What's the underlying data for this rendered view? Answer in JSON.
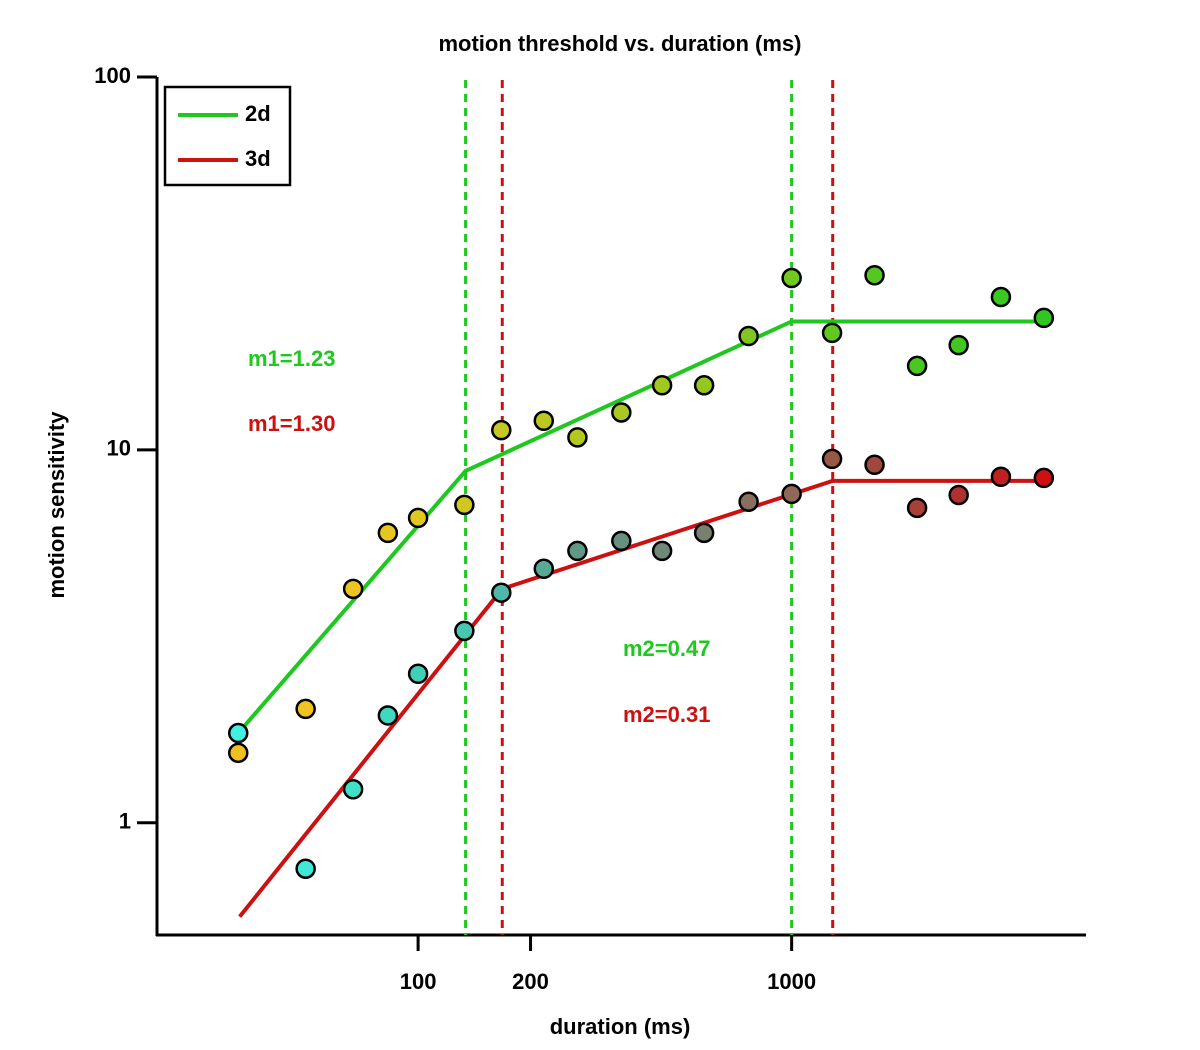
{
  "chart_data": {
    "type": "scatter",
    "title": "motion threshold vs. duration (ms)",
    "x_label": "duration (ms)",
    "y_label": "motion sensitivity",
    "xlog": true,
    "ylog": true,
    "xlim": [
      20,
      6100
    ],
    "ylim": [
      0.5,
      100
    ],
    "xticks": [
      100,
      200,
      1000
    ],
    "yticks": [
      1,
      10,
      100
    ],
    "legend": "upper left",
    "series": [
      {
        "name": "2d",
        "color": "#1ec81e",
        "x": [
          33,
          50,
          67,
          83,
          100,
          133,
          167,
          217,
          267,
          350,
          450,
          583,
          767,
          1000,
          1283,
          1667,
          2167,
          2800,
          3633,
          4733
        ],
        "values": [
          1.54,
          2.02,
          4.24,
          5.99,
          6.57,
          7.12,
          11.3,
          11.97,
          10.8,
          12.6,
          14.9,
          14.9,
          20.2,
          28.9,
          20.6,
          29.4,
          16.8,
          19.1,
          25.7,
          22.6
        ],
        "point_colors": [
          "#f0c020",
          "#f0c420",
          "#eec420",
          "#e8c620",
          "#e0c820",
          "#d0c820",
          "#c4c820",
          "#bcc820",
          "#b4c820",
          "#aac820",
          "#a0c820",
          "#94c820",
          "#80c820",
          "#70c820",
          "#60c820",
          "#54c820",
          "#4ac820",
          "#40c820",
          "#38c820",
          "#30c820"
        ],
        "fit_x": [
          33,
          134,
          1000,
          4733
        ],
        "fit_values": [
          1.74,
          8.78,
          22.1,
          22.1
        ],
        "breakpoints": [
          134,
          1000
        ],
        "annotations": [
          "m1=1.23",
          "m2=0.47"
        ]
      },
      {
        "name": "3d",
        "color": "#cc1111",
        "x": [
          33,
          50,
          67,
          83,
          100,
          133,
          167,
          217,
          267,
          350,
          450,
          583,
          767,
          1000,
          1283,
          1667,
          2167,
          2800,
          3633,
          4733
        ],
        "values": [
          1.74,
          0.753,
          1.23,
          1.94,
          2.51,
          3.27,
          4.14,
          4.8,
          5.36,
          5.7,
          5.36,
          5.99,
          7.26,
          7.62,
          9.46,
          9.12,
          6.99,
          7.57,
          8.47,
          8.41
        ],
        "point_colors": [
          "#40f0e0",
          "#40e8d8",
          "#40e0c8",
          "#40d8c0",
          "#40d0b8",
          "#48c8b0",
          "#50b8a8",
          "#58a898",
          "#609888",
          "#689080",
          "#708878",
          "#788070",
          "#887060",
          "#906858",
          "#985848",
          "#a04840",
          "#a84038",
          "#b03030",
          "#c02020",
          "#d01010"
        ],
        "fit_x": [
          33.3,
          168,
          1288,
          4733
        ],
        "fit_values": [
          0.56,
          4.24,
          8.26,
          8.26
        ],
        "breakpoints": [
          168,
          1288
        ],
        "annotations": [
          "m1=1.30",
          "m2=0.31"
        ]
      }
    ]
  }
}
